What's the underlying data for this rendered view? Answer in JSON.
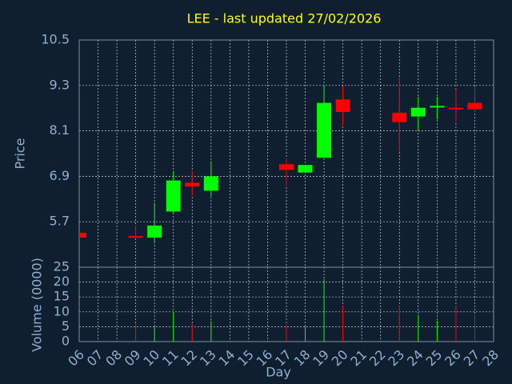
{
  "chart_data": {
    "type": "candlestick",
    "title": "LEE - last updated 27/02/2026",
    "ylabel": "Price",
    "volume_label": "Volume (0000)",
    "xlabel": "Day",
    "x": [
      6,
      9,
      10,
      11,
      12,
      13,
      17,
      18,
      19,
      20,
      23,
      24,
      25,
      26,
      27
    ],
    "open": [
      5.41,
      5.32,
      5.28,
      5.97,
      6.73,
      6.52,
      7.22,
      7.0,
      7.39,
      8.93,
      8.58,
      8.48,
      8.74,
      8.71,
      8.84
    ],
    "high": [
      5.41,
      5.6,
      6.2,
      7.03,
      7.03,
      7.3,
      7.37,
      7.2,
      9.3,
      9.28,
      9.51,
      9.0,
      9.0,
      9.2,
      9.28
    ],
    "low": [
      5.28,
      5.28,
      5.13,
      5.93,
      6.39,
      6.37,
      6.65,
      7.0,
      7.39,
      8.24,
      7.55,
      8.12,
      8.4,
      8.33,
      8.6
    ],
    "close": [
      5.28,
      5.28,
      5.6,
      6.79,
      6.63,
      6.9,
      7.07,
      7.2,
      8.84,
      8.6,
      8.33,
      8.71,
      8.76,
      8.67,
      8.67
    ],
    "volume": [
      0,
      6,
      5,
      10,
      6,
      7,
      6,
      5,
      21,
      12,
      12,
      9,
      7,
      12,
      9
    ],
    "up_color": "#00ff00",
    "down_color": "#ff0000",
    "xlim": [
      6,
      28
    ],
    "xticks": [
      {
        "value": 6,
        "label": "06"
      },
      {
        "value": 7,
        "label": "07"
      },
      {
        "value": 8,
        "label": "08"
      },
      {
        "value": 9,
        "label": "09"
      },
      10,
      11,
      12,
      13,
      14,
      15,
      16,
      17,
      18,
      19,
      20,
      21,
      22,
      23,
      24,
      25,
      26,
      27,
      28
    ],
    "ylim": [
      4.5,
      10.5
    ],
    "yticks": [
      5.7,
      6.9,
      8.1,
      9.3,
      10.5
    ],
    "volume_ylim": [
      0,
      25
    ],
    "volume_yticks": [
      0,
      5,
      10,
      15,
      20,
      25
    ],
    "grid": true
  }
}
